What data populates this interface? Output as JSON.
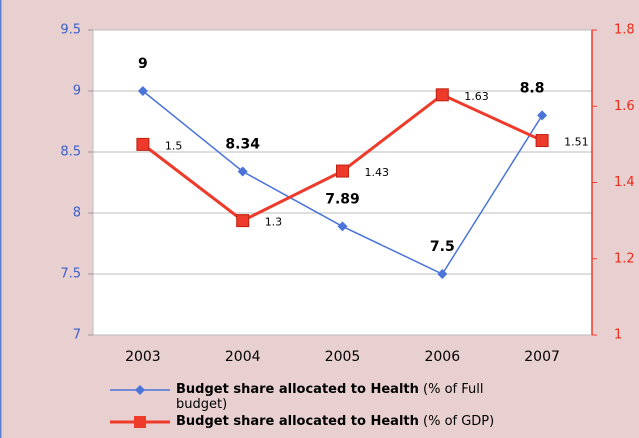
{
  "chart_data": {
    "type": "line",
    "categories": [
      "2003",
      "2004",
      "2005",
      "2006",
      "2007"
    ],
    "series": [
      {
        "name": "Budget share allocated to Health (% of Full budget)",
        "color": "#4a74d8",
        "values": [
          9,
          8.34,
          7.89,
          7.5,
          8.8
        ]
      },
      {
        "name": "Budget share allocated to Health (% of GDP)",
        "color": "#ee3a2a",
        "axis": "y2",
        "values": [
          1.5,
          1.3,
          1.43,
          1.63,
          1.51
        ]
      }
    ],
    "ylim": [
      7,
      9.5
    ],
    "yticks": [
      7,
      7.5,
      8,
      8.5,
      9,
      9.5
    ],
    "y2lim": [
      1,
      1.8
    ],
    "y2ticks": [
      1,
      1.2,
      1.4,
      1.6,
      1.8
    ],
    "grid": true
  }
}
